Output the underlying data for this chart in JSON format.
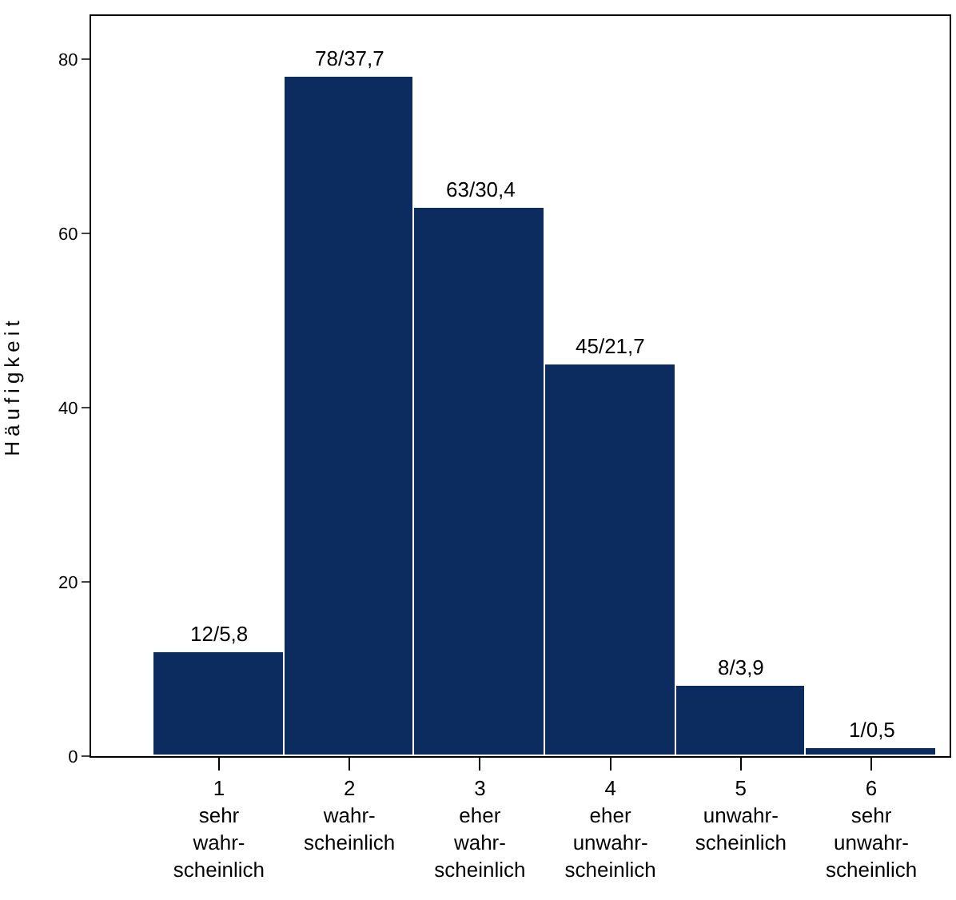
{
  "chart_data": {
    "type": "bar",
    "ylabel": "Häufigkeit",
    "categories": [
      "1\nsehr\nwahr-\nscheinlich",
      "2\nwahr-\nscheinlich",
      "3\neher\nwahr-\nscheinlich",
      "4\neher\nunwahr-\nscheinlich",
      "5\nunwahr-\nscheinlich",
      "6\nsehr\nunwahr-\nscheinlich"
    ],
    "values": [
      12,
      78,
      63,
      45,
      8,
      1
    ],
    "value_labels": [
      "12/5,8",
      "78/37,7",
      "63/30,4",
      "45/21,7",
      "8/3,9",
      "1/0,5"
    ],
    "color": "#0c2b5e",
    "ylim": [
      0,
      85
    ],
    "yticks": [
      0,
      20,
      40,
      60,
      80
    ],
    "grid": false
  }
}
